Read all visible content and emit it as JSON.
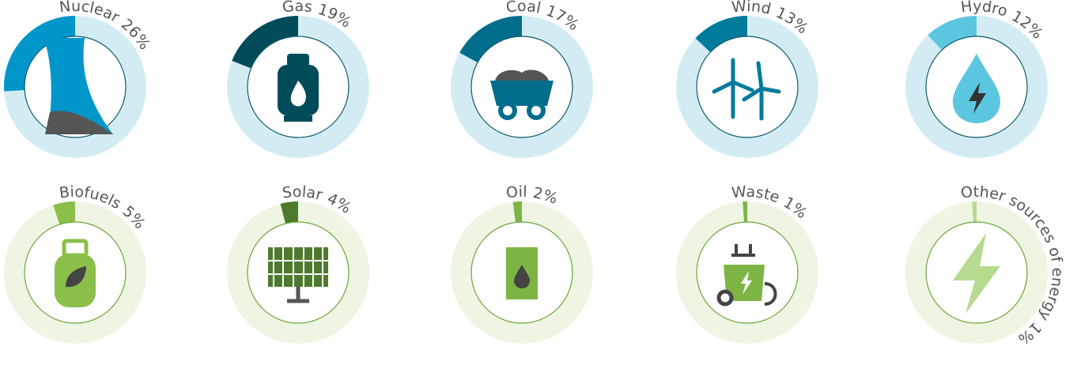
{
  "chart_data": {
    "type": "gauge",
    "categories": [
      "Nuclear",
      "Gas",
      "Coal",
      "Wind",
      "Hydro",
      "Biofuels",
      "Solar",
      "Oil",
      "Waste",
      "Other sources of energy"
    ],
    "values": [
      26,
      19,
      17,
      13,
      12,
      5,
      4,
      2,
      1,
      1
    ],
    "value_labels": [
      "26%",
      "19%",
      "17%",
      "13%",
      "12%",
      "5%",
      "4%",
      "2%",
      "1%",
      "1%"
    ],
    "colors": [
      "#0096c9",
      "#004b5a",
      "#006d8c",
      "#007b9c",
      "#5cc6e0",
      "#8cbf4a",
      "#4e7a2e",
      "#7db544",
      "#7db544",
      "#b6da8e"
    ],
    "track_colors": [
      "#d3ecf4",
      "#d3ecf4",
      "#d3ecf4",
      "#d3ecf4",
      "#d3ecf4",
      "#eef5e3",
      "#eef5e3",
      "#eef5e3",
      "#eef5e3",
      "#eef5e3"
    ]
  }
}
